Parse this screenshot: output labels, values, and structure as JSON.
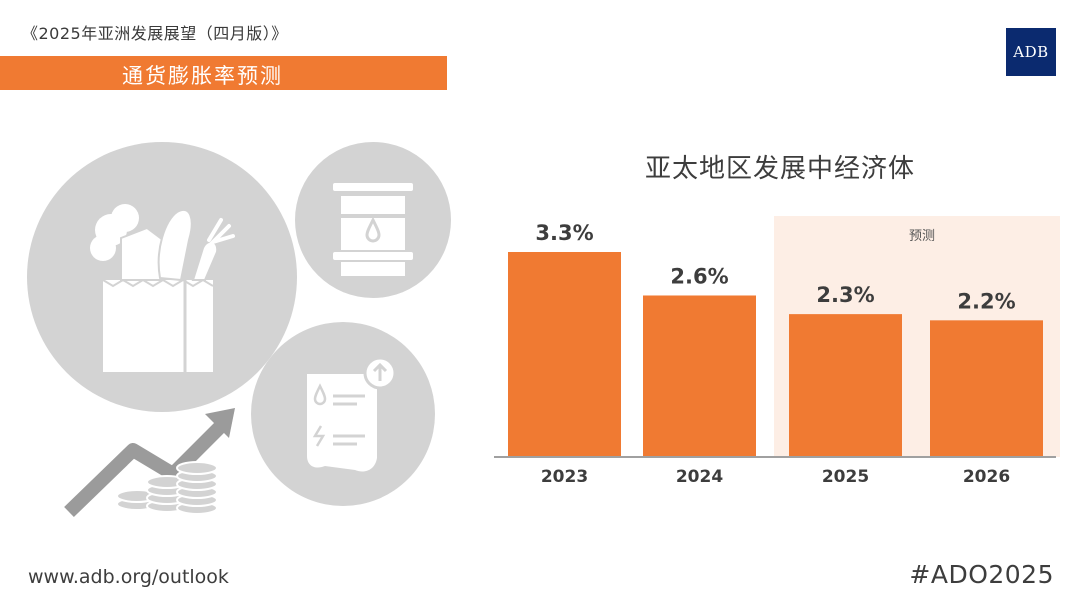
{
  "header": {
    "publication_title": "《2025年亚洲发展展望（四月版）》",
    "section_title": "通货膨胀率预测",
    "logo_text": "ADB"
  },
  "footer": {
    "url": "www.adb.org/outlook",
    "hashtag": "#ADO2025"
  },
  "colors": {
    "accent": "#f07a32",
    "forecast_band": "#fdeee5",
    "icon_circle": "#d3d3d3",
    "logo": "#0b2a6f"
  },
  "illustration": {
    "icons": [
      "grocery-bag-icon",
      "oil-barrel-icon",
      "utility-bill-icon",
      "rising-arrow-coins-icon"
    ]
  },
  "chart_data": {
    "type": "bar",
    "title": "亚太地区发展中经济体",
    "categories": [
      "2023",
      "2024",
      "2025",
      "2026"
    ],
    "values": [
      3.3,
      2.6,
      2.3,
      2.2
    ],
    "data_labels": [
      "3.3%",
      "2.6%",
      "2.3%",
      "2.2%"
    ],
    "unit": "%",
    "ylim": [
      0,
      3.6
    ],
    "forecast": {
      "label": "预测",
      "categories": [
        "2025",
        "2026"
      ]
    },
    "grid": false,
    "legend": "none"
  }
}
